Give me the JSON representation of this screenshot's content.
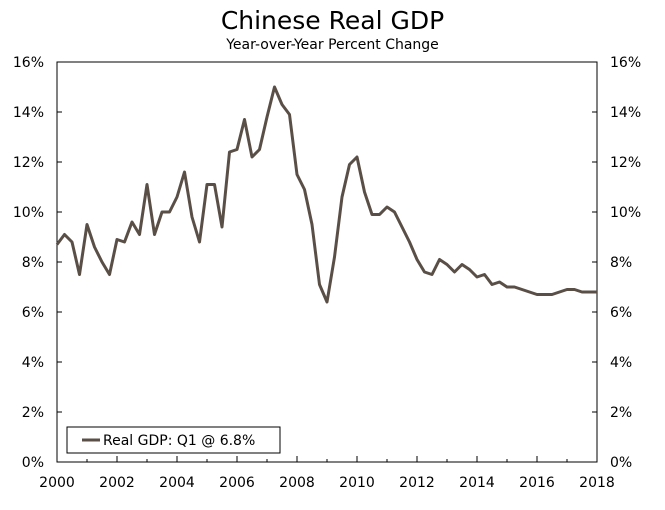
{
  "chart_data": {
    "type": "line",
    "title": "Chinese Real GDP",
    "subtitle": "Year-over-Year Percent Change",
    "xlabel": "",
    "ylabel": "",
    "xlim": [
      2000,
      2018
    ],
    "ylim": [
      0,
      16
    ],
    "grid": false,
    "legend_position": "bottom-left",
    "x_ticks": [
      2000,
      2002,
      2004,
      2006,
      2008,
      2010,
      2012,
      2014,
      2016,
      2018
    ],
    "x_tick_labels": [
      "2000",
      "2002",
      "2004",
      "2006",
      "2008",
      "2010",
      "2012",
      "2014",
      "2016",
      "2018"
    ],
    "y_ticks": [
      0,
      2,
      4,
      6,
      8,
      10,
      12,
      14,
      16
    ],
    "y_tick_labels": [
      "0%",
      "2%",
      "4%",
      "6%",
      "8%",
      "10%",
      "12%",
      "14%",
      "16%"
    ],
    "series": [
      {
        "name": "Real GDP: Q1 @ 6.8%",
        "color": "#5a4f47",
        "x": [
          2000.0,
          2000.25,
          2000.5,
          2000.75,
          2001.0,
          2001.25,
          2001.5,
          2001.75,
          2002.0,
          2002.25,
          2002.5,
          2002.75,
          2003.0,
          2003.25,
          2003.5,
          2003.75,
          2004.0,
          2004.25,
          2004.5,
          2004.75,
          2005.0,
          2005.25,
          2005.5,
          2005.75,
          2006.0,
          2006.25,
          2006.5,
          2006.75,
          2007.0,
          2007.25,
          2007.5,
          2007.75,
          2008.0,
          2008.25,
          2008.5,
          2008.75,
          2009.0,
          2009.25,
          2009.5,
          2009.75,
          2010.0,
          2010.25,
          2010.5,
          2010.75,
          2011.0,
          2011.25,
          2011.5,
          2011.75,
          2012.0,
          2012.25,
          2012.5,
          2012.75,
          2013.0,
          2013.25,
          2013.5,
          2013.75,
          2014.0,
          2014.25,
          2014.5,
          2014.75,
          2015.0,
          2015.25,
          2015.5,
          2015.75,
          2016.0,
          2016.25,
          2016.5,
          2016.75,
          2017.0,
          2017.25,
          2017.5,
          2017.75,
          2018.0
        ],
        "values": [
          8.7,
          9.1,
          8.8,
          7.5,
          9.5,
          8.6,
          8.0,
          7.5,
          8.9,
          8.8,
          9.6,
          9.1,
          11.1,
          9.1,
          10.0,
          10.0,
          10.6,
          11.6,
          9.8,
          8.8,
          11.1,
          11.1,
          9.4,
          12.4,
          12.5,
          13.7,
          12.2,
          12.5,
          13.8,
          15.0,
          14.3,
          13.9,
          11.5,
          10.9,
          9.5,
          7.1,
          6.4,
          8.2,
          10.6,
          11.9,
          12.2,
          10.8,
          9.9,
          9.9,
          10.2,
          10.0,
          9.4,
          8.8,
          8.1,
          7.6,
          7.5,
          8.1,
          7.9,
          7.6,
          7.9,
          7.7,
          7.4,
          7.5,
          7.1,
          7.2,
          7.0,
          7.0,
          6.9,
          6.8,
          6.7,
          6.7,
          6.7,
          6.8,
          6.9,
          6.9,
          6.8,
          6.8,
          6.8
        ]
      }
    ]
  }
}
